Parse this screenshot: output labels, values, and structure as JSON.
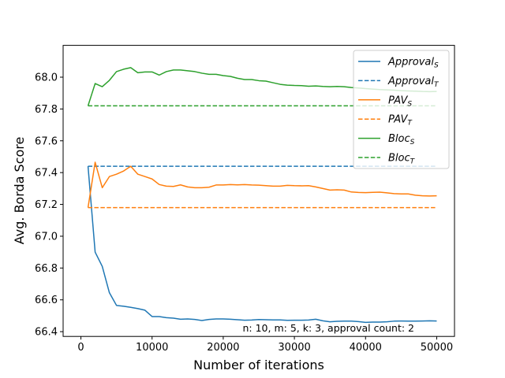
{
  "chart_data": {
    "type": "line",
    "title": "",
    "xlabel": "Number of iterations",
    "ylabel": "Avg. Borda Score",
    "xlim": [
      -2500,
      52500
    ],
    "ylim": [
      66.37,
      68.2
    ],
    "xticks": [
      0,
      10000,
      20000,
      30000,
      40000,
      50000
    ],
    "yticks": [
      66.4,
      66.6,
      66.8,
      67.0,
      67.2,
      67.4,
      67.6,
      67.8,
      68.0
    ],
    "ytick_labels": [
      "66.4",
      "66.6",
      "66.8",
      "67.0",
      "67.2",
      "67.4",
      "67.6",
      "67.8",
      "68.0"
    ],
    "grid": false,
    "legend_position": "top-right",
    "annotation": "n: 10, m: 5, k: 3, approval count: 2",
    "series": [
      {
        "name": "Approval_S",
        "label_base": "Approval",
        "label_sub": "S",
        "color": "#1f77b4",
        "dashed": false,
        "x": [
          1000,
          2000,
          3000,
          4000,
          5000,
          6000,
          7000,
          8000,
          9000,
          10000,
          11000,
          12000,
          13000,
          14000,
          15000,
          16000,
          17000,
          18000,
          19000,
          20000,
          21000,
          22000,
          23000,
          24000,
          25000,
          26000,
          27000,
          28000,
          29000,
          30000,
          31000,
          32000,
          33000,
          34000,
          35000,
          36000,
          37000,
          38000,
          39000,
          40000,
          41000,
          42000,
          43000,
          44000,
          45000,
          46000,
          47000,
          48000,
          49000,
          50000
        ],
        "y": [
          67.44,
          66.9,
          66.81,
          66.645,
          66.565,
          66.56,
          66.553,
          66.545,
          66.535,
          66.495,
          66.495,
          66.488,
          66.485,
          66.478,
          66.48,
          66.477,
          66.47,
          66.477,
          66.48,
          66.48,
          66.478,
          66.475,
          66.472,
          66.473,
          66.476,
          66.475,
          66.474,
          66.474,
          66.471,
          66.472,
          66.472,
          66.473,
          66.478,
          66.468,
          66.462,
          66.465,
          66.466,
          66.466,
          66.463,
          66.458,
          66.46,
          66.46,
          66.462,
          66.466,
          66.467,
          66.466,
          66.466,
          66.467,
          66.468,
          66.467
        ]
      },
      {
        "name": "Approval_T",
        "label_base": "Approval",
        "label_sub": "T",
        "color": "#1f77b4",
        "dashed": true,
        "x": [
          1000,
          50000
        ],
        "y": [
          67.44,
          67.44
        ]
      },
      {
        "name": "PAV_S",
        "label_base": "PAV",
        "label_sub": "S",
        "color": "#ff7f0e",
        "dashed": false,
        "x": [
          1000,
          2000,
          3000,
          4000,
          5000,
          6000,
          7000,
          8000,
          9000,
          10000,
          11000,
          12000,
          13000,
          14000,
          15000,
          16000,
          17000,
          18000,
          19000,
          20000,
          21000,
          22000,
          23000,
          24000,
          25000,
          26000,
          27000,
          28000,
          29000,
          30000,
          31000,
          32000,
          33000,
          34000,
          35000,
          36000,
          37000,
          38000,
          39000,
          40000,
          41000,
          42000,
          43000,
          44000,
          45000,
          46000,
          47000,
          48000,
          49000,
          50000
        ],
        "y": [
          67.18,
          67.465,
          67.305,
          67.375,
          67.39,
          67.41,
          67.44,
          67.39,
          67.375,
          67.36,
          67.325,
          67.315,
          67.313,
          67.323,
          67.31,
          67.305,
          67.305,
          67.308,
          67.322,
          67.322,
          67.325,
          67.323,
          67.325,
          67.322,
          67.321,
          67.318,
          67.315,
          67.315,
          67.32,
          67.318,
          67.317,
          67.318,
          67.31,
          67.3,
          67.29,
          67.292,
          67.29,
          67.278,
          67.275,
          67.274,
          67.276,
          67.277,
          67.273,
          67.268,
          67.266,
          67.266,
          67.258,
          67.254,
          67.253,
          67.254
        ]
      },
      {
        "name": "PAV_T",
        "label_base": "PAV",
        "label_sub": "T",
        "color": "#ff7f0e",
        "dashed": true,
        "x": [
          1000,
          50000
        ],
        "y": [
          67.18,
          67.18
        ]
      },
      {
        "name": "Bloc_S",
        "label_base": "Bloc",
        "label_sub": "S",
        "color": "#2ca02c",
        "dashed": false,
        "x": [
          1000,
          2000,
          3000,
          4000,
          5000,
          6000,
          7000,
          8000,
          9000,
          10000,
          11000,
          12000,
          13000,
          14000,
          15000,
          16000,
          17000,
          18000,
          19000,
          20000,
          21000,
          22000,
          23000,
          24000,
          25000,
          26000,
          27000,
          28000,
          29000,
          30000,
          31000,
          32000,
          33000,
          34000,
          35000,
          36000,
          37000,
          38000,
          39000,
          40000,
          41000,
          42000,
          43000,
          44000,
          45000,
          46000,
          47000,
          48000,
          49000,
          50000
        ],
        "y": [
          67.82,
          67.96,
          67.94,
          67.98,
          68.035,
          68.05,
          68.06,
          68.028,
          68.033,
          68.033,
          68.013,
          68.035,
          68.045,
          68.045,
          68.04,
          68.035,
          68.025,
          68.018,
          68.018,
          68.01,
          68.005,
          67.993,
          67.985,
          67.985,
          67.978,
          67.975,
          67.965,
          67.955,
          67.95,
          67.948,
          67.947,
          67.943,
          67.945,
          67.942,
          67.94,
          67.942,
          67.94,
          67.935,
          67.932,
          67.928,
          67.925,
          67.922,
          67.92,
          67.918,
          67.915,
          67.913,
          67.912,
          67.91,
          67.909,
          67.91
        ]
      },
      {
        "name": "Bloc_T",
        "label_base": "Bloc",
        "label_sub": "T",
        "color": "#2ca02c",
        "dashed": true,
        "x": [
          1000,
          50000
        ],
        "y": [
          67.82,
          67.82
        ]
      }
    ]
  }
}
